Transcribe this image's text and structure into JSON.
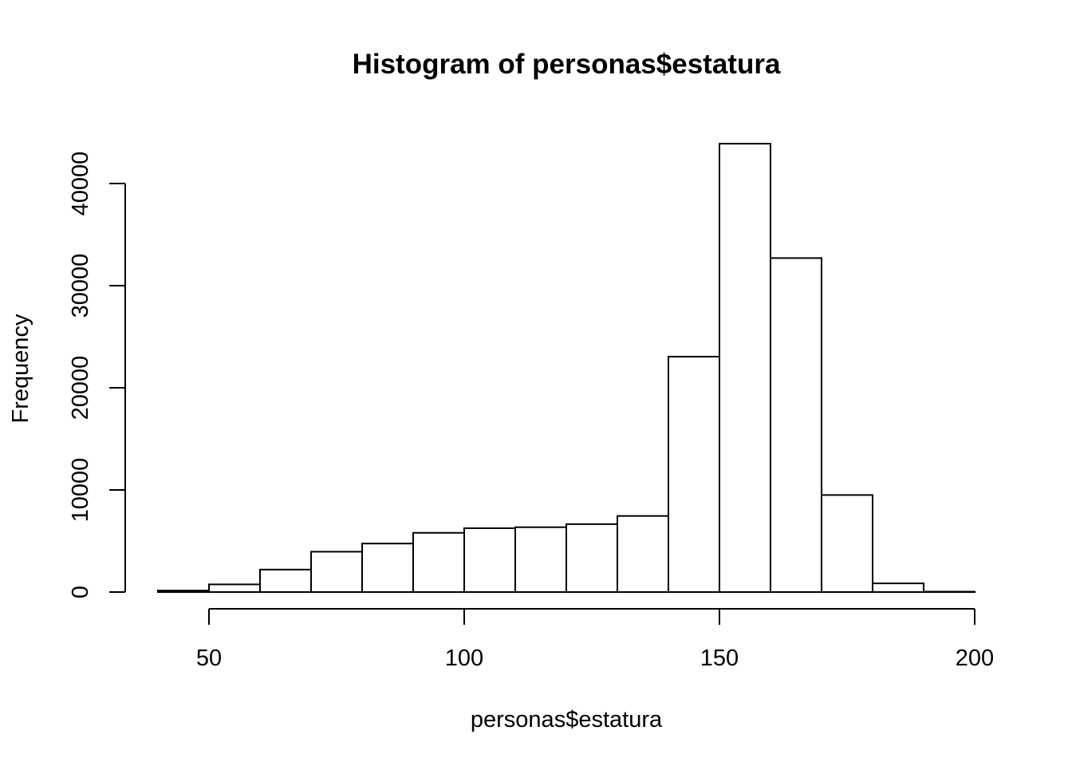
{
  "chart_data": {
    "type": "bar",
    "title": "Histogram of personas$estatura",
    "xlabel": "personas$estatura",
    "ylabel": "Frequency",
    "xlim": [
      40,
      200
    ],
    "ylim": [
      0,
      44000
    ],
    "x_ticks": [
      50,
      100,
      150,
      200
    ],
    "y_ticks": [
      0,
      10000,
      20000,
      30000,
      40000
    ],
    "bin_width": 10,
    "bins": [
      {
        "start": 40,
        "end": 50,
        "count": 150
      },
      {
        "start": 50,
        "end": 60,
        "count": 750
      },
      {
        "start": 60,
        "end": 70,
        "count": 2200
      },
      {
        "start": 70,
        "end": 80,
        "count": 3950
      },
      {
        "start": 80,
        "end": 90,
        "count": 4750
      },
      {
        "start": 90,
        "end": 100,
        "count": 5800
      },
      {
        "start": 100,
        "end": 110,
        "count": 6250
      },
      {
        "start": 110,
        "end": 120,
        "count": 6350
      },
      {
        "start": 120,
        "end": 130,
        "count": 6650
      },
      {
        "start": 130,
        "end": 140,
        "count": 7450
      },
      {
        "start": 140,
        "end": 150,
        "count": 23050
      },
      {
        "start": 150,
        "end": 160,
        "count": 43900
      },
      {
        "start": 160,
        "end": 170,
        "count": 32700
      },
      {
        "start": 170,
        "end": 180,
        "count": 9500
      },
      {
        "start": 180,
        "end": 190,
        "count": 850
      },
      {
        "start": 190,
        "end": 200,
        "count": 40
      }
    ],
    "grid": false,
    "legend": "none",
    "bar_fill": "#ffffff",
    "bar_stroke": "#000000"
  }
}
